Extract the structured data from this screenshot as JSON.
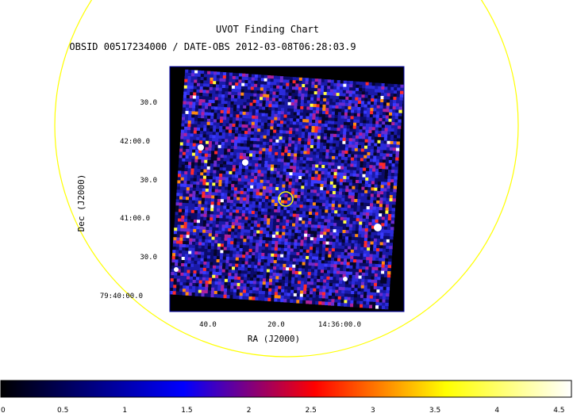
{
  "chart_data": {
    "type": "heatmap",
    "title": "UVOT Finding Chart",
    "subtitle": "OBSID 00517234000 / DATE-OBS 2012-03-08T06:28:03.9",
    "xlabel": "RA (J2000)",
    "ylabel": "Dec (J2000)",
    "x_tick_labels": [
      "40.0",
      "20.0",
      "14:36:00.0"
    ],
    "y_tick_labels": [
      "30.0",
      "42:00.0",
      "30.0",
      "41:00.0",
      "30.0",
      "79:40:00.0"
    ],
    "colorbar": {
      "ticks": [
        0,
        0.5,
        1,
        1.5,
        2,
        2.5,
        3,
        3.5,
        4,
        4.5
      ],
      "tick_labels": [
        "0",
        "0.5",
        "1",
        "1.5",
        "2",
        "2.5",
        "3",
        "3.5",
        "4",
        "4.5"
      ],
      "range": [
        0,
        4.6
      ],
      "colormap": [
        "#000000",
        "#0000ff",
        "#ff0000",
        "#ffff00",
        "#ffffff"
      ]
    },
    "grid": false
  },
  "colors": {
    "circle": "#ffff00",
    "image_background": "#000000",
    "axis_frame": "#0000aa"
  }
}
